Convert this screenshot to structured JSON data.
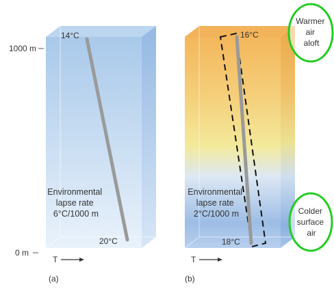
{
  "panel_a": {
    "alt_top_label": "1000 m",
    "alt_bottom_label": "0 m",
    "top_temp": "14°C",
    "bottom_temp": "20°C",
    "caption_lines": [
      "Environmental",
      "lapse rate",
      "6°C/1000 m"
    ],
    "axis_label": "T",
    "panel_label": "(a)"
  },
  "panel_b": {
    "top_temp": "16°C",
    "bottom_temp": "18°C",
    "caption_lines": [
      "Environmental",
      "lapse rate",
      "2°C/1000 m"
    ],
    "axis_label": "T",
    "panel_label": "(b)"
  },
  "callouts": {
    "warmer_lines": [
      "Warmer",
      "air",
      "aloft"
    ],
    "colder_lines": [
      "Colder",
      "surface",
      "air"
    ]
  },
  "colors": {
    "callout_ring": "#22cc22",
    "lapse_line": "#9a9a9a",
    "panel_a_blue": "#a9c9ea",
    "panel_b_orange": "#f3b75c",
    "panel_b_yellow": "#f3ea9c",
    "panel_b_blue": "#9dbde6"
  }
}
